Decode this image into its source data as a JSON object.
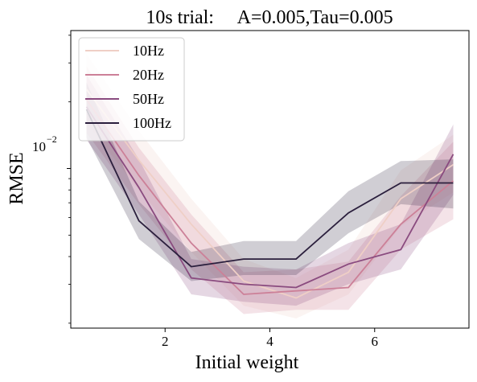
{
  "chart_data": {
    "type": "line",
    "title": "10s trial:     A=0.005,Tau=0.005",
    "xlabel": "Initial weight",
    "ylabel": "RMSE",
    "xlim": [
      0.2,
      7.8
    ],
    "ylim": [
      0.0019,
      0.042
    ],
    "yscale": "log",
    "x_ticks": [
      2,
      4,
      6
    ],
    "x_tick_labels": [
      "2",
      "4",
      "6"
    ],
    "y_tick_label": {
      "base": "10",
      "exponent": "−2",
      "value": 0.01
    },
    "grid": false,
    "legend_position": "top-left",
    "series": [
      {
        "name": "10Hz",
        "color": "#efcfc6",
        "x": [
          0.5,
          1.5,
          2.5,
          3.5,
          4.5,
          5.5,
          6.5,
          7.5
        ],
        "y": [
          0.0228,
          0.0109,
          0.0056,
          0.0031,
          0.0026,
          0.0034,
          0.0073,
          0.0104
        ],
        "ci_low": [
          0.016,
          0.008,
          0.0042,
          0.0024,
          0.0021,
          0.0027,
          0.0055,
          0.0078
        ],
        "ci_high": [
          0.033,
          0.0148,
          0.0073,
          0.0039,
          0.0032,
          0.0043,
          0.0098,
          0.0142
        ]
      },
      {
        "name": "20Hz",
        "color": "#cc8098",
        "x": [
          0.5,
          1.5,
          2.5,
          3.5,
          4.5,
          5.5,
          6.5,
          7.5
        ],
        "y": [
          0.0205,
          0.0093,
          0.0046,
          0.0027,
          0.0028,
          0.0029,
          0.0056,
          0.0088
        ],
        "ci_low": [
          0.0145,
          0.0069,
          0.0035,
          0.0022,
          0.0023,
          0.0023,
          0.0043,
          0.0059
        ],
        "ci_high": [
          0.029,
          0.0124,
          0.0062,
          0.0034,
          0.0035,
          0.0038,
          0.0075,
          0.0132
        ]
      },
      {
        "name": "50Hz",
        "color": "#8a4b7f",
        "x": [
          0.5,
          1.5,
          2.5,
          3.5,
          4.5,
          5.5,
          6.5,
          7.5
        ],
        "y": [
          0.019,
          0.0082,
          0.0032,
          0.003,
          0.0029,
          0.0037,
          0.0043,
          0.0116
        ],
        "ci_low": [
          0.0135,
          0.0062,
          0.0027,
          0.0025,
          0.0024,
          0.003,
          0.0035,
          0.0076
        ],
        "ci_high": [
          0.0265,
          0.011,
          0.0039,
          0.0036,
          0.0035,
          0.0046,
          0.0056,
          0.0158
        ]
      },
      {
        "name": "100Hz",
        "color": "#2b1f3d",
        "x": [
          0.5,
          1.5,
          2.5,
          3.5,
          4.5,
          5.5,
          6.5,
          7.5
        ],
        "y": [
          0.0185,
          0.0058,
          0.0036,
          0.0039,
          0.0039,
          0.0063,
          0.0086,
          0.0086
        ],
        "ci_low": [
          0.0138,
          0.0048,
          0.0031,
          0.0033,
          0.0033,
          0.0051,
          0.0069,
          0.0066
        ],
        "ci_high": [
          0.0245,
          0.0071,
          0.0042,
          0.0047,
          0.0047,
          0.0079,
          0.0108,
          0.011
        ]
      }
    ]
  }
}
